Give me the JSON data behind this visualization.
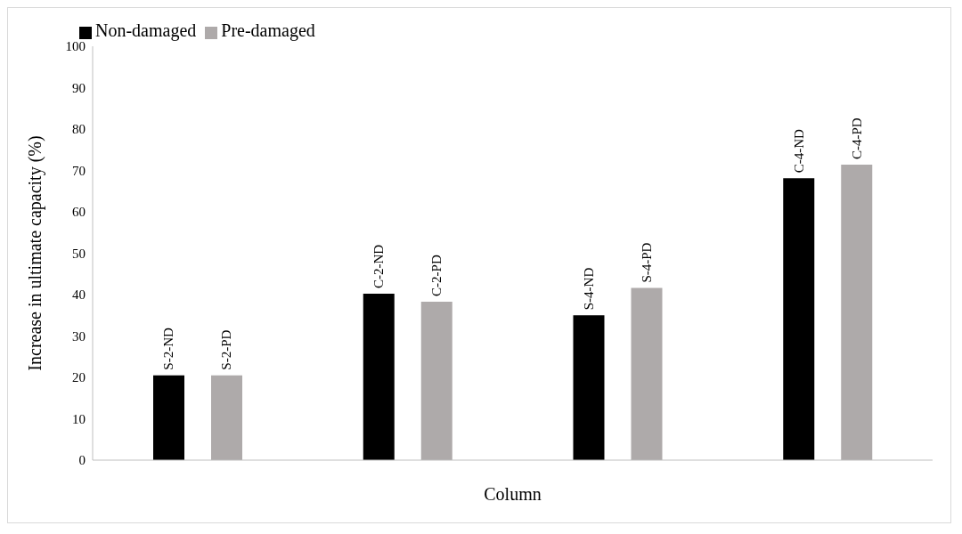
{
  "chart_data": {
    "type": "bar",
    "xlabel": "Column",
    "ylabel": "Increase in ultimate capacity (%)",
    "categories": [
      null,
      null,
      null,
      null
    ],
    "series": [
      {
        "name": "Non-damaged",
        "color": "#000000",
        "values": [
          20.5,
          40.2,
          35.0,
          68.1
        ],
        "value_labels": [
          "S-2-ND",
          "C-2-ND",
          "S-4-ND",
          "C-4-ND"
        ]
      },
      {
        "name": "Pre-damaged",
        "color": "#aeaaaa",
        "values": [
          20.5,
          38.3,
          41.6,
          71.4
        ],
        "value_labels": [
          "S-2-PD",
          "C-2-PD",
          "S-4-PD",
          "C-4-PD"
        ]
      }
    ],
    "ylim": [
      0,
      100
    ],
    "yticks": [
      0,
      10,
      20,
      30,
      40,
      50,
      60,
      70,
      80,
      90,
      100
    ],
    "grid": false,
    "legend": "top left"
  }
}
